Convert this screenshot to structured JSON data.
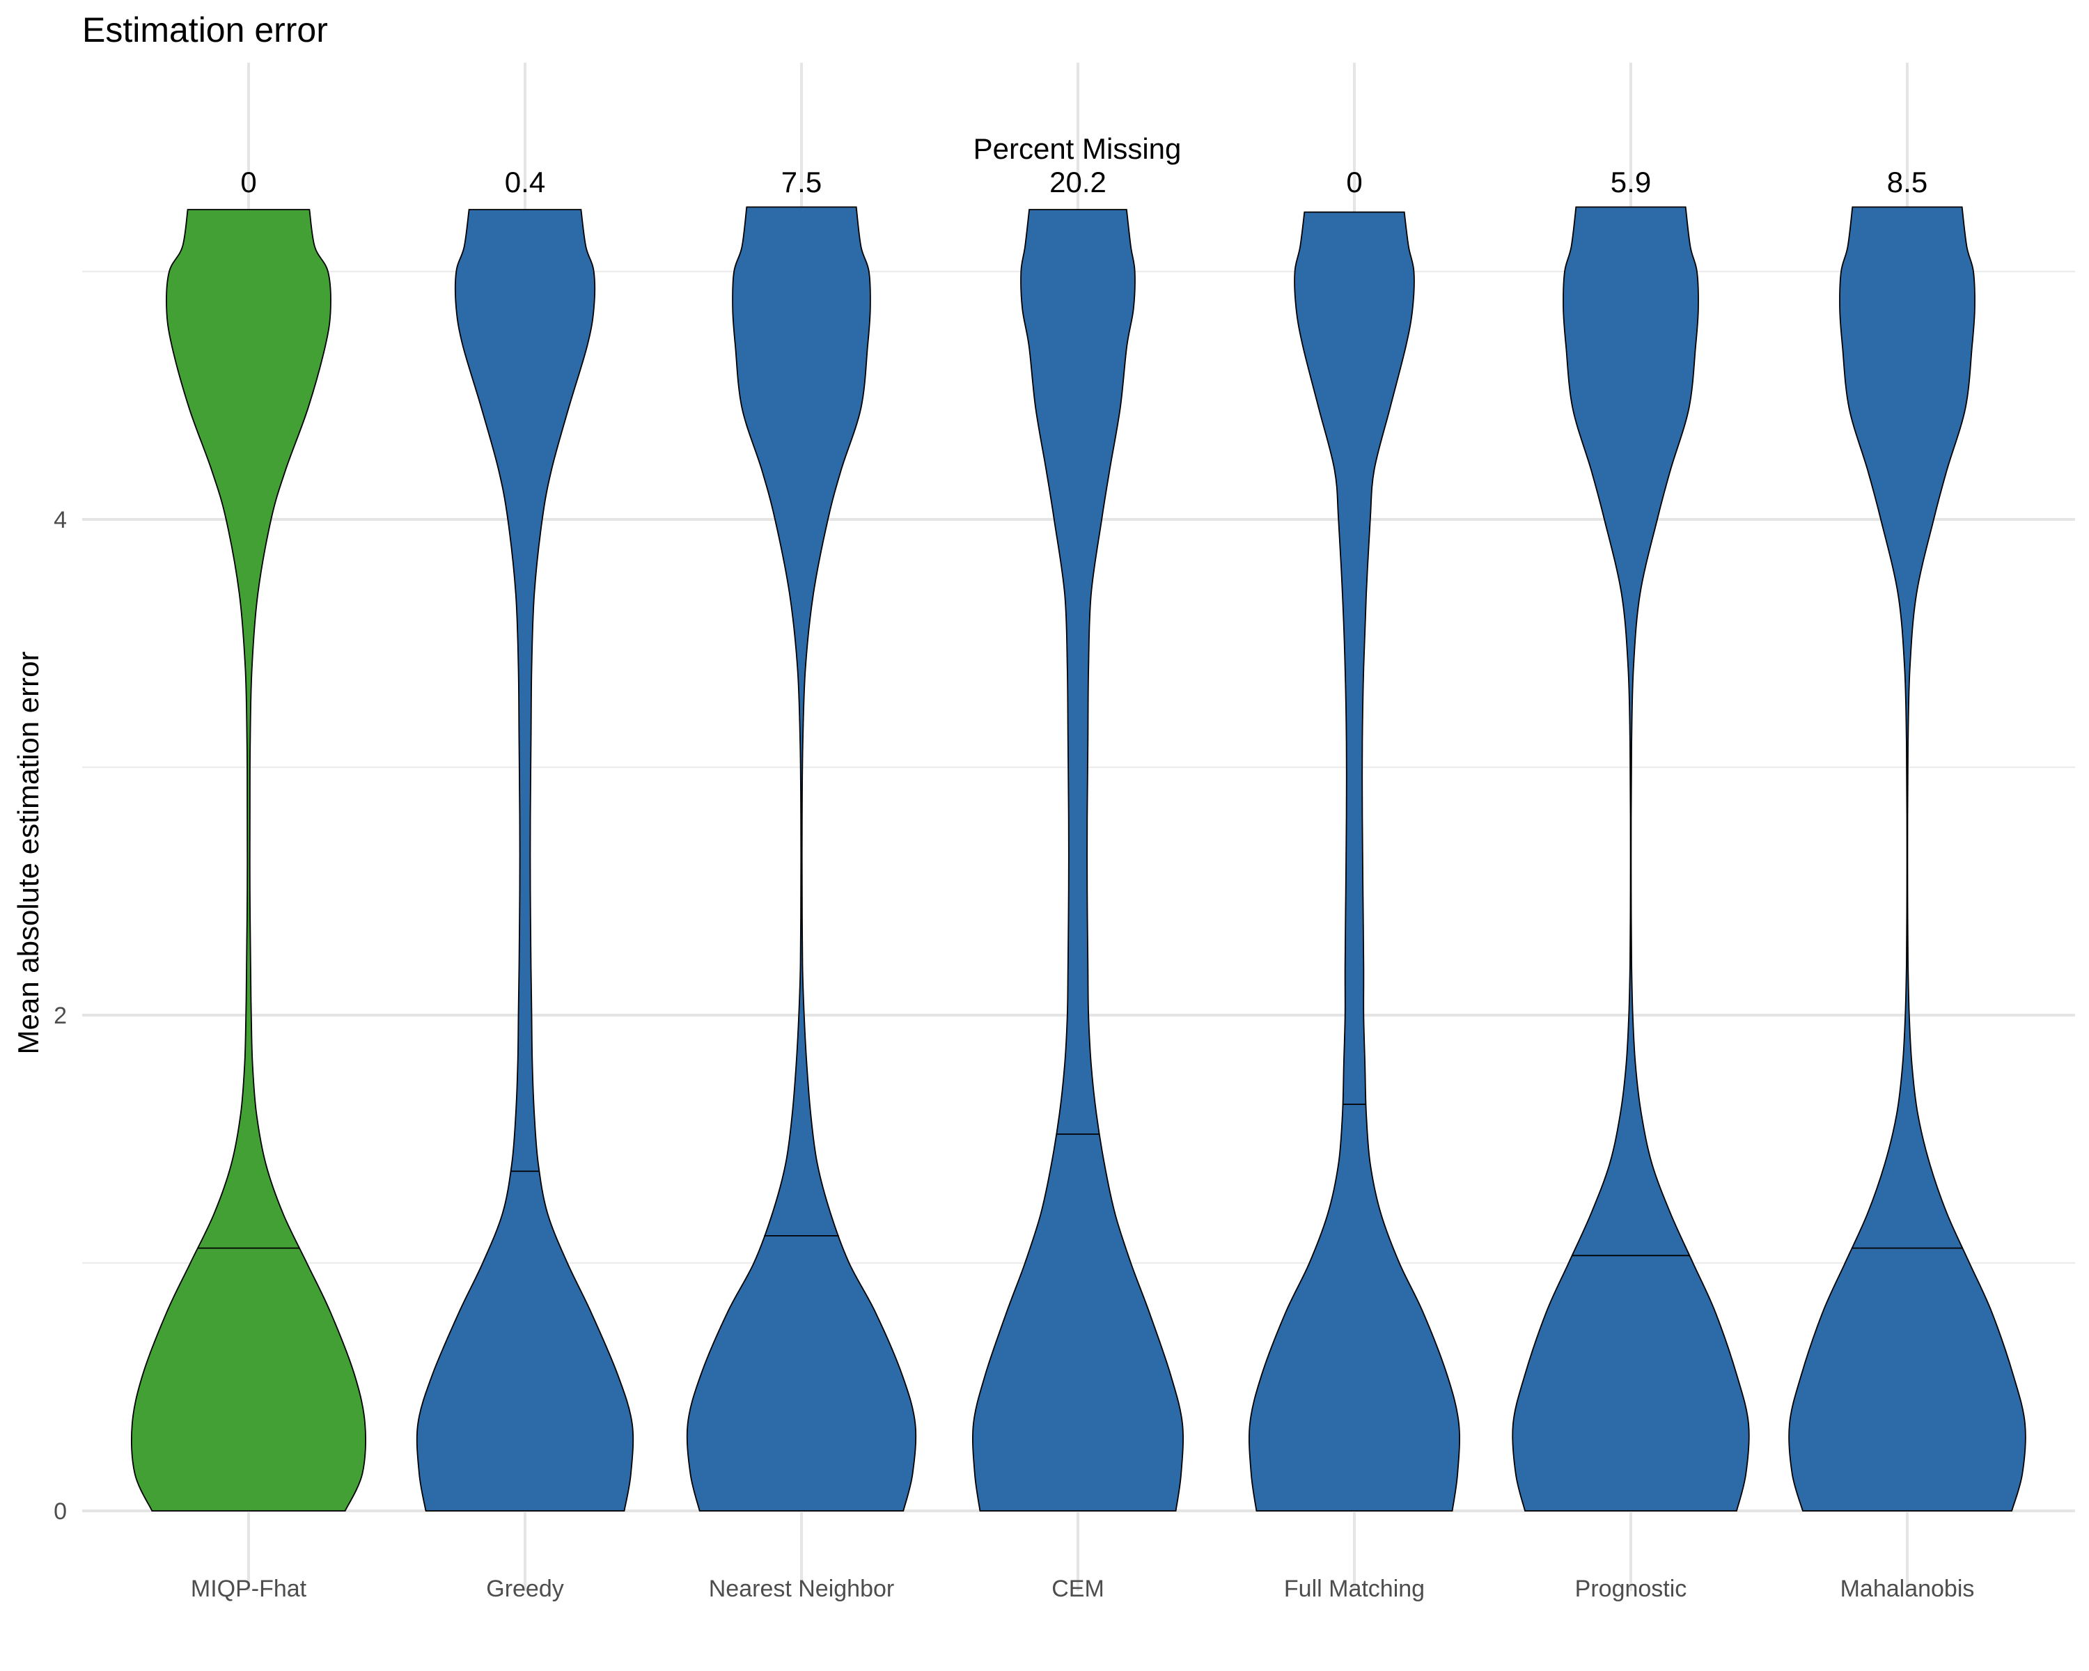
{
  "chart_data": {
    "type": "violin",
    "title": "Estimation error",
    "xlabel": "",
    "ylabel": "Mean absolute estimation error",
    "ylim": [
      0,
      5.3
    ],
    "y_ticks": [
      0,
      2,
      4
    ],
    "grid": true,
    "annotation_title": "Percent Missing",
    "categories": [
      "MIQP-Fhat",
      "Greedy",
      "Nearest Neighbor",
      "CEM",
      "Full Matching",
      "Prognostic",
      "Mahalanobis"
    ],
    "percent_missing": [
      "0",
      "0.4",
      "7.5",
      "20.2",
      "0",
      "5.9",
      "8.5"
    ],
    "medians": [
      1.06,
      1.37,
      1.11,
      1.52,
      1.64,
      1.03,
      1.06
    ],
    "max_values": [
      5.25,
      5.25,
      5.26,
      5.25,
      5.24,
      5.26,
      5.26
    ],
    "fill_colors": [
      "#43a035",
      "#2d6aa8",
      "#2d6aa8",
      "#2d6aa8",
      "#2d6aa8",
      "#2d6aa8",
      "#2d6aa8"
    ],
    "density_y": [
      0,
      0.15,
      0.35,
      0.55,
      0.8,
      1.0,
      1.2,
      1.4,
      1.6,
      1.8,
      2.0,
      2.2,
      2.5,
      2.8,
      3.1,
      3.4,
      3.7,
      4.0,
      4.2,
      4.45,
      4.7,
      4.85,
      5.0,
      5.1
    ],
    "series": [
      {
        "name": "MIQP-Fhat",
        "half_widths": [
          0.73,
          0.86,
          0.88,
          0.8,
          0.62,
          0.44,
          0.26,
          0.13,
          0.06,
          0.03,
          0.02,
          0.015,
          0.01,
          0.01,
          0.012,
          0.025,
          0.07,
          0.17,
          0.28,
          0.45,
          0.58,
          0.62,
          0.6,
          0.5
        ]
      },
      {
        "name": "Greedy",
        "half_widths": [
          0.75,
          0.8,
          0.81,
          0.7,
          0.5,
          0.32,
          0.17,
          0.1,
          0.07,
          0.055,
          0.05,
          0.045,
          0.04,
          0.04,
          0.045,
          0.05,
          0.07,
          0.13,
          0.2,
          0.33,
          0.47,
          0.52,
          0.52,
          0.46
        ]
      },
      {
        "name": "Nearest Neighbor",
        "half_widths": [
          0.77,
          0.84,
          0.86,
          0.76,
          0.56,
          0.36,
          0.22,
          0.12,
          0.07,
          0.04,
          0.02,
          0.008,
          0.004,
          0.004,
          0.01,
          0.03,
          0.09,
          0.2,
          0.3,
          0.45,
          0.5,
          0.52,
          0.51,
          0.45
        ]
      },
      {
        "name": "CEM",
        "half_widths": [
          0.74,
          0.78,
          0.79,
          0.7,
          0.54,
          0.4,
          0.28,
          0.2,
          0.14,
          0.1,
          0.08,
          0.075,
          0.07,
          0.07,
          0.075,
          0.08,
          0.1,
          0.18,
          0.24,
          0.32,
          0.37,
          0.42,
          0.43,
          0.4
        ]
      },
      {
        "name": "Full Matching",
        "half_widths": [
          0.74,
          0.78,
          0.79,
          0.7,
          0.52,
          0.34,
          0.2,
          0.12,
          0.09,
          0.08,
          0.07,
          0.07,
          0.065,
          0.06,
          0.06,
          0.07,
          0.09,
          0.12,
          0.15,
          0.27,
          0.39,
          0.44,
          0.45,
          0.41
        ]
      },
      {
        "name": "Prognostic",
        "half_widths": [
          0.8,
          0.87,
          0.89,
          0.8,
          0.64,
          0.47,
          0.3,
          0.16,
          0.08,
          0.035,
          0.015,
          0.006,
          0.002,
          0.002,
          0.006,
          0.02,
          0.07,
          0.2,
          0.3,
          0.44,
          0.49,
          0.51,
          0.5,
          0.45
        ]
      },
      {
        "name": "Mahalanobis",
        "half_widths": [
          0.79,
          0.87,
          0.89,
          0.8,
          0.64,
          0.47,
          0.3,
          0.17,
          0.08,
          0.035,
          0.015,
          0.006,
          0.002,
          0.002,
          0.006,
          0.02,
          0.07,
          0.2,
          0.3,
          0.44,
          0.49,
          0.51,
          0.5,
          0.45
        ]
      }
    ]
  }
}
